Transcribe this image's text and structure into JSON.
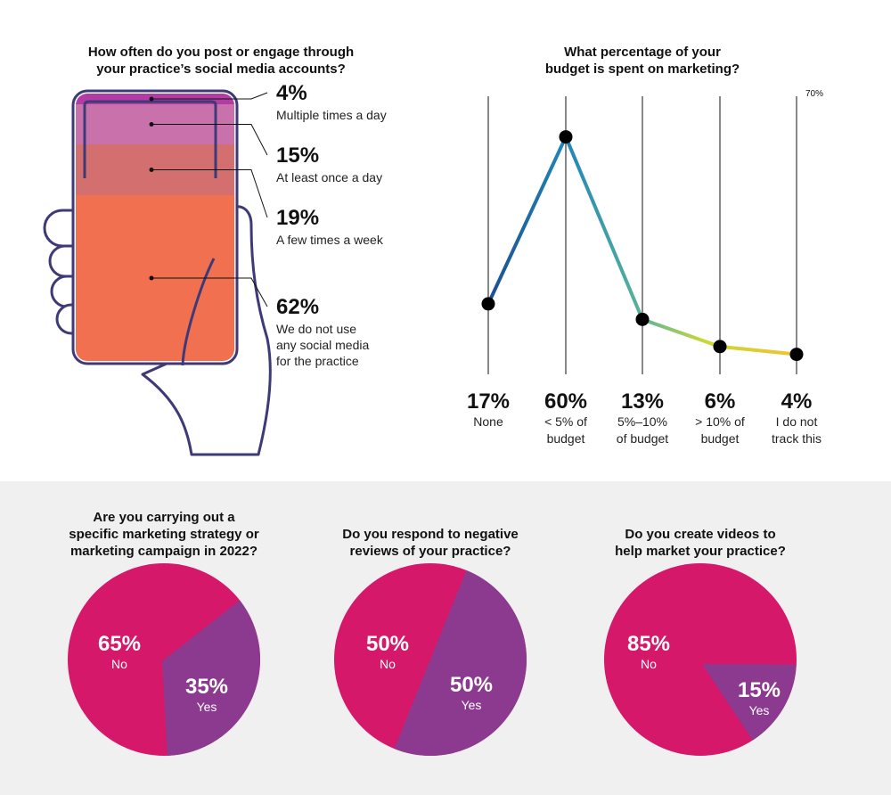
{
  "colors": {
    "magenta": "#D6186B",
    "purple": "#8B3A8F",
    "phone_outline": "#3E3A78",
    "seg1": "#B23CA4",
    "seg2": "#C971AA",
    "seg3": "#D36F6F",
    "seg4": "#F07050"
  },
  "chart_data": [
    {
      "type": "stacked-bar",
      "title": "How often do you post or engage through your practice's social media accounts?",
      "categories": [
        {
          "pct_label": "4%",
          "label_lines": [
            "Multiple times a day"
          ],
          "value": 4
        },
        {
          "pct_label": "15%",
          "label_lines": [
            "At least once a day"
          ],
          "value": 15
        },
        {
          "pct_label": "19%",
          "label_lines": [
            "A few times a week"
          ],
          "value": 19
        },
        {
          "pct_label": "62%",
          "label_lines": [
            "We do not use",
            "any social media",
            "for the practice"
          ],
          "value": 62
        }
      ]
    },
    {
      "type": "line",
      "title": "What percentage of your budget is spent on marketing?",
      "ymax_label": "70%",
      "ylim": [
        0,
        70
      ],
      "points": [
        {
          "pct_label": "17%",
          "label_lines": [
            "None"
          ],
          "value": 17
        },
        {
          "pct_label": "60%",
          "label_lines": [
            "< 5% of",
            "budget"
          ],
          "value": 60
        },
        {
          "pct_label": "13%",
          "label_lines": [
            "5%–10%",
            "of budget"
          ],
          "value": 13
        },
        {
          "pct_label": "6%",
          "label_lines": [
            "> 10% of",
            "budget"
          ],
          "value": 6
        },
        {
          "pct_label": "4%",
          "label_lines": [
            "I do not",
            "track this"
          ],
          "value": 4
        }
      ]
    },
    {
      "type": "pie",
      "title_lines": [
        "Are you carrying out a",
        "specific marketing strategy or",
        "marketing campaign in 2022?"
      ],
      "slices": [
        {
          "label": "No",
          "pct_label": "65%",
          "value": 65
        },
        {
          "label": "Yes",
          "pct_label": "35%",
          "value": 35
        }
      ]
    },
    {
      "type": "pie",
      "title_lines": [
        "Do you respond to negative",
        "reviews of your practice?"
      ],
      "slices": [
        {
          "label": "No",
          "pct_label": "50%",
          "value": 50
        },
        {
          "label": "Yes",
          "pct_label": "50%",
          "value": 50
        }
      ]
    },
    {
      "type": "pie",
      "title_lines": [
        "Do you create videos to",
        "help market your practice?"
      ],
      "slices": [
        {
          "label": "No",
          "pct_label": "85%",
          "value": 85
        },
        {
          "label": "Yes",
          "pct_label": "15%",
          "value": 15
        }
      ]
    }
  ]
}
